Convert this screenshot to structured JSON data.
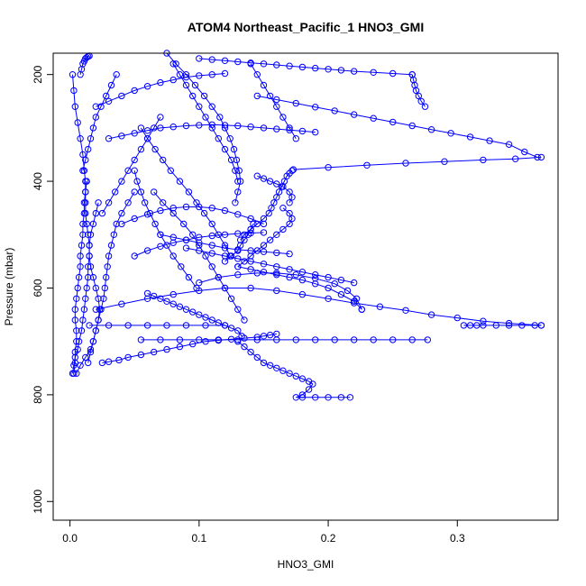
{
  "chart_data": {
    "type": "scatter",
    "title": "ATOM4 Northeast_Pacific_1 HNO3_GMI",
    "xlabel": "HNO3_GMI",
    "ylabel": "Pressure (mbar)",
    "xlim": [
      -0.013,
      0.378
    ],
    "ylim": [
      1035,
      160
    ],
    "y_reversed": true,
    "grid": false,
    "x_ticks": [
      0.0,
      0.1,
      0.2,
      0.3
    ],
    "x_tick_labels": [
      "0.0",
      "0.1",
      "0.2",
      "0.3"
    ],
    "y_ticks": [
      200,
      400,
      600,
      800,
      1000
    ],
    "y_tick_labels": [
      "200",
      "400",
      "600",
      "800",
      "1000"
    ],
    "marker": "open-circle",
    "color": "#0000ff",
    "series": [
      {
        "x": [
          0.003,
          0.004,
          0.004,
          0.005,
          0.005,
          0.004,
          0.004,
          0.005,
          0.006,
          0.007,
          0.008,
          0.008,
          0.009,
          0.01,
          0.01,
          0.011,
          0.011,
          0.012,
          0.012,
          0.011,
          0.01,
          0.008,
          0.006,
          0.004,
          0.003,
          0.002
        ],
        "y": [
          760,
          740,
          720,
          700,
          680,
          660,
          640,
          620,
          600,
          580,
          560,
          540,
          520,
          500,
          480,
          460,
          440,
          420,
          400,
          380,
          350,
          320,
          290,
          260,
          230,
          200
        ]
      },
      {
        "x": [
          0.002,
          0.003,
          0.004,
          0.006,
          0.007,
          0.009,
          0.01,
          0.011,
          0.012,
          0.013,
          0.014,
          0.014,
          0.015,
          0.015,
          0.014,
          0.013,
          0.012,
          0.012,
          0.012,
          0.013
        ],
        "y": [
          760,
          745,
          730,
          715,
          700,
          680,
          660,
          640,
          620,
          600,
          580,
          560,
          540,
          520,
          500,
          480,
          460,
          440,
          420,
          400
        ]
      },
      {
        "x": [
          0.005,
          0.008,
          0.012,
          0.016,
          0.018,
          0.02,
          0.022,
          0.023,
          0.022,
          0.02,
          0.018,
          0.016,
          0.015,
          0.015,
          0.016,
          0.018,
          0.02,
          0.022
        ],
        "y": [
          760,
          745,
          730,
          715,
          700,
          680,
          660,
          640,
          620,
          600,
          580,
          560,
          540,
          520,
          500,
          480,
          460,
          440
        ]
      },
      {
        "x": [
          0.014,
          0.016,
          0.018,
          0.02,
          0.022,
          0.024,
          0.026,
          0.027,
          0.028,
          0.029,
          0.03,
          0.032,
          0.034,
          0.036,
          0.04,
          0.045,
          0.05
        ],
        "y": [
          740,
          720,
          700,
          680,
          660,
          640,
          620,
          600,
          580,
          560,
          540,
          520,
          500,
          480,
          460,
          440,
          420
        ]
      },
      {
        "x": [
          0.025,
          0.03,
          0.038,
          0.045,
          0.055,
          0.065,
          0.075,
          0.085,
          0.095,
          0.105,
          0.115,
          0.125,
          0.135,
          0.145,
          0.15,
          0.155,
          0.16
        ],
        "y": [
          740,
          738,
          735,
          730,
          725,
          720,
          715,
          710,
          705,
          700,
          698,
          696,
          694,
          692,
          690,
          688,
          686
        ]
      },
      {
        "x": [
          0.015,
          0.03,
          0.045,
          0.06,
          0.075,
          0.09,
          0.105,
          0.12
        ],
        "y": [
          670,
          670,
          670,
          670,
          670,
          670,
          670,
          670
        ]
      },
      {
        "x": [
          0.055,
          0.07,
          0.085,
          0.1,
          0.115,
          0.13,
          0.145,
          0.16,
          0.175,
          0.19,
          0.205,
          0.22,
          0.235,
          0.25,
          0.265,
          0.277
        ],
        "y": [
          697,
          697,
          697,
          697,
          697,
          697,
          697,
          697,
          697,
          697,
          697,
          697,
          697,
          697,
          697,
          697
        ]
      },
      {
        "x": [
          0.13,
          0.135,
          0.14,
          0.145,
          0.15,
          0.155,
          0.16,
          0.165,
          0.17,
          0.175,
          0.18,
          0.185,
          0.188,
          0.185,
          0.18,
          0.175,
          0.18,
          0.19,
          0.2,
          0.21,
          0.217
        ],
        "y": [
          700,
          710,
          720,
          730,
          740,
          745,
          750,
          755,
          760,
          765,
          770,
          775,
          780,
          790,
          800,
          805,
          805,
          805,
          805,
          805,
          805
        ]
      },
      {
        "x": [
          0.06,
          0.065,
          0.07,
          0.075,
          0.08,
          0.085,
          0.09,
          0.095,
          0.1,
          0.105,
          0.11,
          0.115,
          0.12,
          0.125,
          0.13,
          0.133
        ],
        "y": [
          610,
          615,
          620,
          625,
          630,
          635,
          640,
          645,
          650,
          655,
          660,
          665,
          670,
          675,
          680,
          690
        ]
      },
      {
        "x": [
          0.02,
          0.04,
          0.06,
          0.08,
          0.1,
          0.12,
          0.14,
          0.16,
          0.18,
          0.2,
          0.22,
          0.24,
          0.26,
          0.28,
          0.3,
          0.32,
          0.34,
          0.365
        ],
        "y": [
          640,
          630,
          620,
          612,
          605,
          600,
          600,
          605,
          612,
          620,
          628,
          635,
          642,
          650,
          656,
          662,
          666,
          670
        ]
      },
      {
        "x": [
          0.305,
          0.31,
          0.315,
          0.32,
          0.33,
          0.34,
          0.35,
          0.36,
          0.365
        ],
        "y": [
          670,
          670,
          670,
          670,
          670,
          670,
          670,
          670,
          670
        ]
      },
      {
        "x": [
          0.1,
          0.115,
          0.13,
          0.145,
          0.16,
          0.175,
          0.19,
          0.205,
          0.215,
          0.222,
          0.226
        ],
        "y": [
          590,
          580,
          575,
          572,
          572,
          575,
          582,
          592,
          605,
          620,
          640
        ]
      },
      {
        "x": [
          0.13,
          0.14,
          0.15,
          0.16,
          0.17,
          0.18,
          0.19,
          0.2,
          0.21,
          0.22,
          0.226
        ],
        "y": [
          560,
          565,
          570,
          575,
          580,
          585,
          592,
          600,
          612,
          625,
          640
        ]
      },
      {
        "x": [
          0.07,
          0.08,
          0.09,
          0.1,
          0.11,
          0.12,
          0.13,
          0.14,
          0.15,
          0.16,
          0.17
        ],
        "y": [
          500,
          505,
          510,
          515,
          520,
          525,
          528,
          530,
          532,
          534,
          536
        ]
      },
      {
        "x": [
          0.065,
          0.072,
          0.08,
          0.088,
          0.095,
          0.1,
          0.105,
          0.11,
          0.115,
          0.12,
          0.125,
          0.13,
          0.135
        ],
        "y": [
          420,
          440,
          460,
          480,
          500,
          520,
          540,
          560,
          580,
          600,
          620,
          640,
          660
        ]
      },
      {
        "x": [
          0.055,
          0.06,
          0.066,
          0.072,
          0.078,
          0.085,
          0.092,
          0.098,
          0.104,
          0.11,
          0.115,
          0.12,
          0.124
        ],
        "y": [
          300,
          320,
          340,
          360,
          380,
          400,
          420,
          440,
          460,
          480,
          500,
          520,
          540
        ]
      },
      {
        "x": [
          0.05,
          0.052,
          0.055,
          0.058,
          0.062,
          0.066,
          0.07,
          0.075,
          0.08,
          0.086,
          0.092,
          0.098
        ],
        "y": [
          380,
          400,
          420,
          440,
          460,
          480,
          500,
          520,
          540,
          560,
          580,
          600
        ]
      },
      {
        "x": [
          0.04,
          0.05,
          0.06,
          0.07,
          0.08,
          0.09,
          0.1,
          0.11,
          0.12,
          0.13,
          0.14,
          0.15
        ],
        "y": [
          480,
          470,
          462,
          455,
          450,
          448,
          448,
          450,
          455,
          462,
          470,
          480
        ]
      },
      {
        "x": [
          0.13,
          0.135,
          0.14,
          0.145,
          0.15,
          0.155,
          0.16,
          0.165,
          0.17,
          0.172,
          0.17,
          0.165
        ],
        "y": [
          560,
          550,
          540,
          530,
          520,
          510,
          500,
          490,
          480,
          470,
          460,
          450
        ]
      },
      {
        "x": [
          0.08,
          0.085,
          0.09,
          0.095,
          0.1,
          0.105,
          0.11,
          0.115,
          0.12,
          0.125,
          0.128,
          0.13
        ],
        "y": [
          180,
          200,
          220,
          240,
          260,
          280,
          300,
          320,
          340,
          360,
          380,
          400
        ]
      },
      {
        "x": [
          0.03,
          0.04,
          0.05,
          0.06,
          0.07,
          0.08,
          0.09,
          0.1,
          0.11,
          0.12,
          0.13,
          0.14,
          0.15,
          0.16,
          0.17,
          0.18,
          0.19
        ],
        "y": [
          320,
          315,
          310,
          305,
          300,
          298,
          296,
          295,
          294,
          295,
          296,
          298,
          300,
          302,
          304,
          306,
          308
        ]
      },
      {
        "x": [
          0.1,
          0.11,
          0.12,
          0.13,
          0.14,
          0.15,
          0.16,
          0.17,
          0.18,
          0.19,
          0.2,
          0.21,
          0.22,
          0.235,
          0.25,
          0.265
        ],
        "y": [
          170,
          172,
          174,
          176,
          178,
          180,
          182,
          184,
          186,
          188,
          190,
          192,
          194,
          196,
          198,
          200
        ]
      },
      {
        "x": [
          0.265,
          0.266,
          0.267,
          0.268,
          0.27,
          0.272,
          0.275
        ],
        "y": [
          200,
          210,
          220,
          230,
          240,
          250,
          260
        ]
      },
      {
        "x": [
          0.02,
          0.03,
          0.04,
          0.05,
          0.06,
          0.07,
          0.08,
          0.09,
          0.1,
          0.11,
          0.12
        ],
        "y": [
          260,
          250,
          240,
          230,
          222,
          215,
          210,
          205,
          202,
          200,
          198
        ]
      },
      {
        "x": [
          0.145,
          0.16,
          0.175,
          0.19,
          0.205,
          0.22,
          0.235,
          0.25,
          0.265,
          0.28,
          0.295,
          0.31,
          0.325,
          0.34,
          0.352,
          0.362
        ],
        "y": [
          240,
          247,
          254,
          261,
          268,
          275,
          282,
          289,
          296,
          303,
          310,
          317,
          324,
          331,
          345,
          355
        ]
      },
      {
        "x": [
          0.173,
          0.2,
          0.23,
          0.26,
          0.29,
          0.32,
          0.345,
          0.365
        ],
        "y": [
          378,
          374,
          370,
          366,
          363,
          360,
          358,
          355
        ]
      },
      {
        "x": [
          0.172,
          0.17,
          0.168,
          0.166,
          0.164,
          0.162,
          0.16,
          0.158,
          0.156,
          0.154,
          0.15,
          0.145,
          0.14,
          0.135,
          0.132
        ],
        "y": [
          380,
          385,
          390,
          400,
          410,
          420,
          430,
          440,
          450,
          460,
          470,
          480,
          490,
          500,
          510
        ]
      },
      {
        "x": [
          0.145,
          0.15,
          0.155,
          0.16,
          0.165,
          0.17,
          0.172,
          0.17
        ],
        "y": [
          390,
          395,
          400,
          405,
          410,
          420,
          430,
          440
        ]
      },
      {
        "x": [
          0.14,
          0.145,
          0.15,
          0.155,
          0.16,
          0.165,
          0.17,
          0.175
        ],
        "y": [
          180,
          200,
          220,
          240,
          260,
          280,
          300,
          320
        ]
      },
      {
        "x": [
          0.05,
          0.06,
          0.07,
          0.08,
          0.09,
          0.1,
          0.11,
          0.12,
          0.13,
          0.14,
          0.15
        ],
        "y": [
          540,
          530,
          522,
          515,
          510,
          505,
          502,
          500,
          498,
          497,
          496
        ]
      },
      {
        "x": [
          0.12,
          0.125,
          0.13,
          0.132,
          0.135,
          0.138,
          0.14,
          0.142
        ],
        "y": [
          550,
          540,
          530,
          520,
          510,
          500,
          490,
          480
        ]
      },
      {
        "x": [
          0.075,
          0.082,
          0.09,
          0.097,
          0.104,
          0.11,
          0.116,
          0.12,
          0.124,
          0.127,
          0.129,
          0.131,
          0.132,
          0.13,
          0.128
        ],
        "y": [
          160,
          180,
          200,
          220,
          240,
          260,
          280,
          300,
          320,
          340,
          360,
          380,
          400,
          420,
          440
        ]
      },
      {
        "x": [
          0.22,
          0.21,
          0.2,
          0.19,
          0.18,
          0.17,
          0.16,
          0.15,
          0.14,
          0.13,
          0.12,
          0.11,
          0.1,
          0.09
        ],
        "y": [
          590,
          585,
          580,
          575,
          570,
          565,
          560,
          555,
          550,
          545,
          540,
          535,
          530,
          525
        ]
      },
      {
        "x": [
          0.025,
          0.03,
          0.035,
          0.04,
          0.045,
          0.05,
          0.055,
          0.06,
          0.065,
          0.07
        ],
        "y": [
          460,
          440,
          420,
          400,
          380,
          360,
          340,
          320,
          300,
          280
        ]
      },
      {
        "x": [
          0.01,
          0.012,
          0.014,
          0.016,
          0.018,
          0.02,
          0.024,
          0.028,
          0.032,
          0.036
        ],
        "y": [
          380,
          360,
          340,
          320,
          300,
          280,
          260,
          240,
          220,
          200
        ]
      },
      {
        "x": [
          0.008,
          0.009,
          0.01,
          0.011,
          0.012,
          0.013,
          0.014,
          0.015
        ],
        "y": [
          200,
          190,
          180,
          175,
          170,
          168,
          166,
          165
        ]
      }
    ]
  }
}
